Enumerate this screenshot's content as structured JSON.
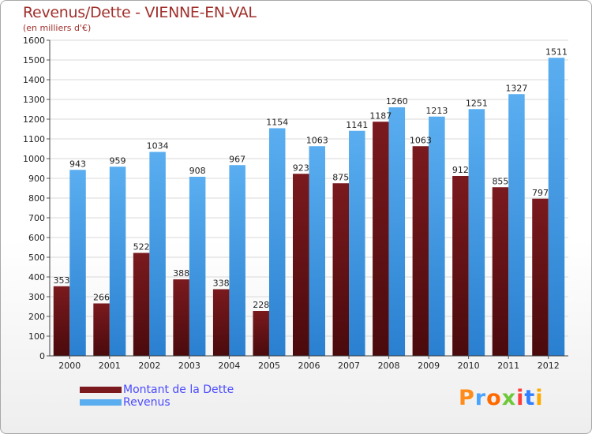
{
  "header": {
    "title": "Revenus/Dette - VIENNE-EN-VAL",
    "subtitle": "(en milliers d'€)"
  },
  "brand": {
    "logo_text": "Proxiti",
    "logo_colors": [
      "#ff8c1a",
      "#4aa3ff",
      "#ff6a00",
      "#6fc83a",
      "#ff3b3b",
      "#2f7fff",
      "#ffaa00"
    ]
  },
  "colors": {
    "debt_bar": "#7a1a1e",
    "debt_bar_dark": "#4a0a0c",
    "revenue_bar": "#5aaef0",
    "revenue_bar_dark": "#2a80d0",
    "axis_text": "#222222",
    "grid": "#d9d9d9",
    "legend_text": "#4a4aff"
  },
  "chart_data": {
    "type": "bar",
    "title": "Revenus/Dette - VIENNE-EN-VAL",
    "subtitle": "(en milliers d'€)",
    "xlabel": "",
    "ylabel": "",
    "categories": [
      "2000",
      "2001",
      "2002",
      "2003",
      "2004",
      "2005",
      "2006",
      "2007",
      "2008",
      "2009",
      "2010",
      "2011",
      "2012"
    ],
    "series": [
      {
        "name": "Montant de la Dette",
        "color": "#7a1a1e",
        "values": [
          353,
          266,
          522,
          388,
          338,
          228,
          923,
          875,
          1187,
          1063,
          912,
          855,
          797
        ]
      },
      {
        "name": "Revenus",
        "color": "#5aaef0",
        "values": [
          943,
          959,
          1034,
          908,
          967,
          1154,
          1063,
          1141,
          1260,
          1213,
          1251,
          1327,
          1511
        ]
      }
    ],
    "ylim": [
      0,
      1600
    ],
    "yticks": [
      0,
      100,
      200,
      300,
      400,
      500,
      600,
      700,
      800,
      900,
      1000,
      1100,
      1200,
      1300,
      1400,
      1500,
      1600
    ],
    "grid": true,
    "legend_position": "bottom-left"
  }
}
